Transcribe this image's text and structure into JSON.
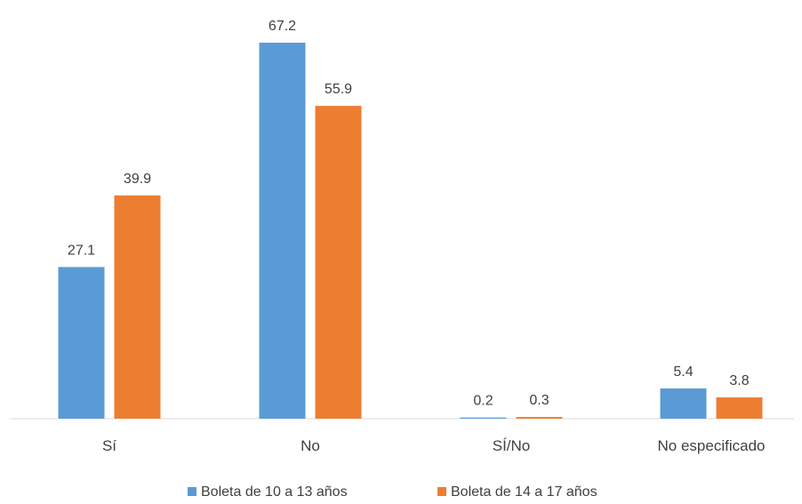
{
  "chart_data": {
    "type": "bar",
    "categories": [
      "Sí",
      "No",
      "SÍ/No",
      "No especificado"
    ],
    "series": [
      {
        "name": "Boleta de 10 a 13 años",
        "values": [
          27.1,
          67.2,
          0.2,
          5.4
        ],
        "labels": [
          "27.1",
          "67.2",
          "0.2",
          "5.4"
        ],
        "color": "#5B9BD5"
      },
      {
        "name": "Boleta de 14 a 17 años",
        "values": [
          39.9,
          55.9,
          0.3,
          3.8
        ],
        "labels": [
          "39.9",
          "55.9",
          "0.3",
          "3.8"
        ],
        "color": "#ED7D31"
      }
    ],
    "ylim": [
      0,
      67.2
    ],
    "grid": false,
    "legend_position": "bottom"
  }
}
